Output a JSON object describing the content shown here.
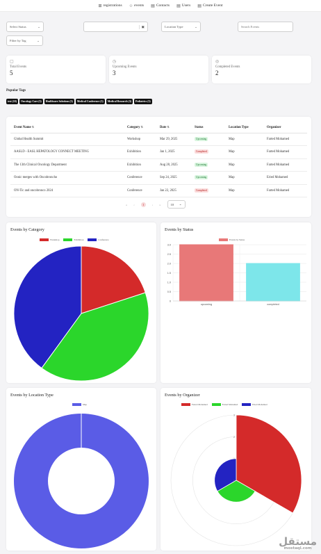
{
  "nav": [
    {
      "label": "registrations",
      "icon": "grid-icon"
    },
    {
      "label": "events",
      "icon": "star-icon"
    },
    {
      "label": "Contacts",
      "icon": "address-book-icon"
    },
    {
      "label": "Users",
      "icon": "users-icon"
    },
    {
      "label": "Create Event",
      "icon": "create-icon"
    }
  ],
  "filters": {
    "status": "Select Status",
    "date": "",
    "location": "Location Type",
    "search_placeholder": "Search Events",
    "tag": "Filter by Tag"
  },
  "stats": [
    {
      "label": "Total Events",
      "value": "5"
    },
    {
      "label": "Upcoming Events",
      "value": "3"
    },
    {
      "label": "Completed Events",
      "value": "2"
    }
  ],
  "tags_title": "Popular Tags",
  "tags": [
    "test (10)",
    "Oncology Care (3)",
    "Healthcare Solutions (3)",
    "Medical Conference (3)",
    "Medical Research (3)",
    "Pediatrics (3)"
  ],
  "table": {
    "headers": [
      "Event Name",
      "Category",
      "Date",
      "Status",
      "Location Type",
      "Organizer"
    ],
    "rows": [
      {
        "name": "Global Health Summit",
        "category": "Workshop",
        "date": "Mar 29, 2025",
        "status": "Upcoming",
        "location": "Map",
        "organizer": "Farted Mohamed"
      },
      {
        "name": "AASLD - EASL HEPATOLOGY CONNECT MEETING",
        "category": "Exhibition",
        "date": "Jan 1, 2025",
        "status": "Completed",
        "location": "Map",
        "organizer": "Farted Mohamed"
      },
      {
        "name": "The 13th Clinical Oncology Department",
        "category": "Exhibition",
        "date": "Aug 28, 2025",
        "status": "Upcoming",
        "location": "Map",
        "organizer": "Farted Mohamed"
      },
      {
        "name": "Oonic merges with Oncobroncho",
        "category": "Conference",
        "date": "Sep 24, 2025",
        "status": "Upcoming",
        "location": "Map",
        "organizer": "Eried Mohamed"
      },
      {
        "name": "ON-Tic and oncobronco 2024",
        "category": "Conference",
        "date": "Jan 22, 2025",
        "status": "Completed",
        "location": "Map",
        "organizer": "Farted Mohamed"
      }
    ]
  },
  "pagination": {
    "first": "«",
    "prev": "‹",
    "current": "1",
    "next": "›",
    "last": "»",
    "per_page": "10"
  },
  "colors": {
    "red": "#d42a2a",
    "green": "#2bd62b",
    "blue": "#2323c2",
    "pink": "#e87878",
    "cyan": "#7de6ea",
    "indigo": "#5a5ce6"
  },
  "charts": {
    "category": {
      "title": "Events by Category"
    },
    "status": {
      "title": "Events by Status"
    },
    "location": {
      "title": "Events by Location Type"
    },
    "organizer": {
      "title": "Events by Organizer"
    }
  },
  "chart_data": [
    {
      "type": "pie",
      "title": "Events by Category",
      "categories": [
        "Workshop",
        "Exhibition",
        "Conference"
      ],
      "values": [
        1,
        2,
        2
      ],
      "colors": [
        "#d42a2a",
        "#2bd62b",
        "#2323c2"
      ]
    },
    {
      "type": "bar",
      "title": "Events by Status",
      "categories": [
        "upcoming",
        "completed"
      ],
      "series": [
        {
          "name": "Events by Status",
          "values": [
            3,
            2
          ]
        }
      ],
      "ylim": [
        0,
        3
      ],
      "yticks": [
        "0",
        "0.5",
        "1.0",
        "1.5",
        "2.0",
        "2.5",
        "3.0"
      ],
      "colors": [
        "#e87878",
        "#7de6ea"
      ],
      "grid": true,
      "legend": "top"
    },
    {
      "type": "pie",
      "title": "Events by Location Type",
      "categories": [
        "Map"
      ],
      "values": [
        5
      ],
      "colors": [
        "#5a5ce6"
      ],
      "legend": "top"
    },
    {
      "type": "pie",
      "title": "Events by Organizer",
      "categories": [
        "Farted Mohamed",
        "Farted Mohamed",
        "Eried Mohamed"
      ],
      "values": [
        3,
        1,
        1
      ],
      "colors": [
        "#d42a2a",
        "#2bd62b",
        "#2323c2"
      ],
      "rlim": [
        0,
        3
      ],
      "rticks": [
        "0",
        "1",
        "2",
        "3"
      ],
      "legend": "top"
    }
  ],
  "watermark": {
    "arabic": "مستقل",
    "latin": "mostaql.com"
  }
}
